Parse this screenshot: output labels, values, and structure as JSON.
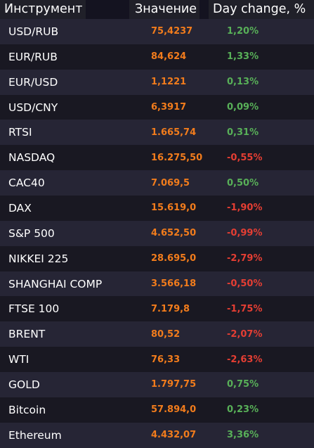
{
  "header": {
    "instrument": "Инструмент",
    "value": "Значение",
    "change": "Day change, %"
  },
  "colors": {
    "value": "#f27c1c",
    "positive": "#58b058",
    "negative": "#e53e33",
    "row_odd": "#262535",
    "row_even": "#191822"
  },
  "rows": [
    {
      "name": "USD/RUB",
      "value": "75,4237",
      "change": "1,20%",
      "direction": "up"
    },
    {
      "name": "EUR/RUB",
      "value": "84,624",
      "change": "1,33%",
      "direction": "up"
    },
    {
      "name": "EUR/USD",
      "value": "1,1221",
      "change": "0,13%",
      "direction": "up"
    },
    {
      "name": "USD/CNY",
      "value": "6,3917",
      "change": "0,09%",
      "direction": "up"
    },
    {
      "name": "RTSI",
      "value": "1.665,74",
      "change": "0,31%",
      "direction": "up"
    },
    {
      "name": "NASDAQ",
      "value": "16.275,50",
      "change": "-0,55%",
      "direction": "down"
    },
    {
      "name": "CAC40",
      "value": "7.069,5",
      "change": "0,50%",
      "direction": "up"
    },
    {
      "name": "DAX",
      "value": "15.619,0",
      "change": "-1,90%",
      "direction": "down"
    },
    {
      "name": "S&P 500",
      "value": "4.652,50",
      "change": "-0,99%",
      "direction": "down"
    },
    {
      "name": "NIKKEI 225",
      "value": "28.695,0",
      "change": "-2,79%",
      "direction": "down"
    },
    {
      "name": "SHANGHAI COMP",
      "value": "3.566,18",
      "change": "-0,50%",
      "direction": "down"
    },
    {
      "name": "FTSE 100",
      "value": "7.179,8",
      "change": "-1,75%",
      "direction": "down"
    },
    {
      "name": "BRENT",
      "value": "80,52",
      "change": "-2,07%",
      "direction": "down"
    },
    {
      "name": "WTI",
      "value": "76,33",
      "change": "-2,63%",
      "direction": "down"
    },
    {
      "name": "GOLD",
      "value": "1.797,75",
      "change": "0,75%",
      "direction": "up"
    },
    {
      "name": "Bitcoin",
      "value": "57.894,0",
      "change": "0,23%",
      "direction": "up"
    },
    {
      "name": "Ethereum",
      "value": "4.432,07",
      "change": "3,36%",
      "direction": "up"
    }
  ]
}
